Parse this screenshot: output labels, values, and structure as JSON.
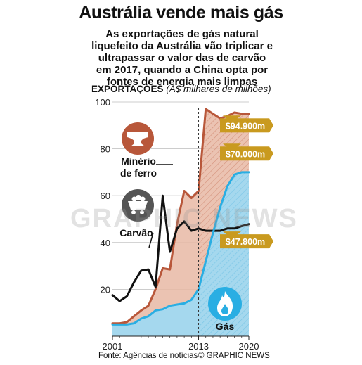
{
  "title": "Austrália vende mais gás",
  "subtitle": "As exportações de gás natural liquefeito da Austrália vão triplicar e ultrapassar o valor das de carvão em 2017, quando a China opta por fontes de energia mais limpas",
  "ylabel_bold": "EXPORTAÇÕES",
  "ylabel_unit": "(A$ milhares de milhões)",
  "footer": {
    "source": "Fonte: Agências de notícias",
    "credit": "© GRAPHIC NEWS"
  },
  "watermark": "GRAPHIC NEWS",
  "chart_data": {
    "type": "line",
    "x": [
      2001,
      2002,
      2003,
      2004,
      2005,
      2006,
      2007,
      2008,
      2009,
      2010,
      2011,
      2012,
      2013,
      2014,
      2015,
      2016,
      2017,
      2018,
      2019,
      2020
    ],
    "x_ticks": [
      "2001",
      "2013",
      "2020"
    ],
    "y_ticks": [
      "100",
      "80",
      "60",
      "40",
      "20"
    ],
    "ylim": [
      0,
      100
    ],
    "forecast_start": 2013,
    "series": [
      {
        "name": "Minério de ferro",
        "color": "#b8573a",
        "fill": "#e8b8a4",
        "values": [
          5.5,
          5.5,
          6,
          8.5,
          11,
          13,
          20,
          29,
          28.5,
          48,
          62,
          59,
          62,
          97,
          95,
          93,
          94,
          95.5,
          95,
          94.9
        ]
      },
      {
        "name": "Carvão",
        "color": "#111111",
        "values": [
          17.5,
          15,
          17,
          23,
          28,
          28.5,
          21,
          60,
          36,
          46,
          49,
          45,
          46,
          45,
          45,
          45,
          46,
          46,
          47,
          47.8
        ]
      },
      {
        "name": "Gás",
        "color": "#29aee3",
        "fill": "#a5d8ee",
        "values": [
          5,
          5,
          5,
          5.5,
          7.5,
          8.5,
          11,
          11.5,
          13,
          13.5,
          14,
          15.5,
          20,
          32,
          44,
          55,
          64,
          69,
          70,
          70
        ]
      }
    ],
    "labels": {
      "iron": "$94.900m",
      "gas": "$70.000m",
      "coal": "$47.800m"
    },
    "icon_labels": {
      "iron_line1": "Minério",
      "iron_line2": "de ferro",
      "coal": "Carvão",
      "gas": "Gás"
    },
    "colors": {
      "iron": "#b8573a",
      "coal": "#111111",
      "gas": "#29aee3",
      "label_box": "#c99a1f",
      "grid": "#bbbbbb"
    }
  }
}
